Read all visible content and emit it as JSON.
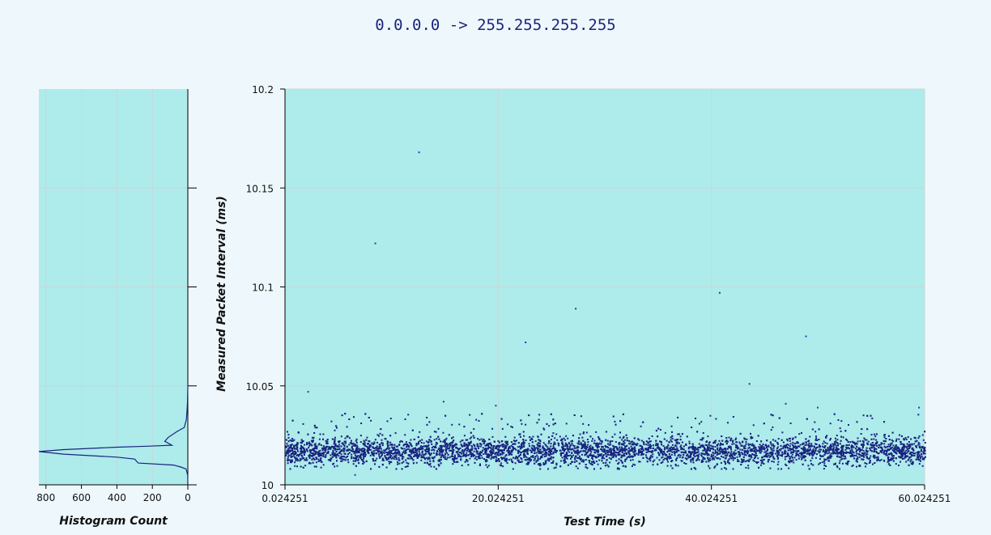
{
  "title": "0.0.0.0 -> 255.255.255.255",
  "colors": {
    "background": "#eef8fc",
    "plot_background": "#aeebeb",
    "grid": "#c8d8d8",
    "points": "#1a237e",
    "title": "#1a237e"
  },
  "chart_data": [
    {
      "id": "histogram",
      "type": "line",
      "orientation": "horizontal-histogram",
      "xlabel": "Histogram Count",
      "ylabel": "",
      "x_reversed": true,
      "xlim": [
        0,
        840
      ],
      "ylim": [
        10,
        10.2
      ],
      "xticks": [
        800,
        600,
        400,
        200,
        0
      ],
      "grid": true,
      "series": [
        {
          "points": [
            [
              0,
              10.0
            ],
            [
              1,
              10.005
            ],
            [
              10,
              10.008
            ],
            [
              40,
              10.009
            ],
            [
              80,
              10.01
            ],
            [
              280,
              10.011
            ],
            [
              300,
              10.013
            ],
            [
              400,
              10.014
            ],
            [
              700,
              10.0155
            ],
            [
              840,
              10.0168
            ],
            [
              700,
              10.0178
            ],
            [
              400,
              10.019
            ],
            [
              230,
              10.0195
            ],
            [
              90,
              10.02
            ],
            [
              130,
              10.022
            ],
            [
              110,
              10.024
            ],
            [
              60,
              10.027
            ],
            [
              20,
              10.029
            ],
            [
              8,
              10.033
            ],
            [
              4,
              10.038
            ],
            [
              2,
              10.042
            ],
            [
              0,
              10.05
            ]
          ]
        }
      ]
    },
    {
      "id": "scatter",
      "type": "scatter",
      "xlabel": "Test Time (s)",
      "ylabel": "Measured Packet Interval (ms)",
      "xlim": [
        0.024251,
        60.024251
      ],
      "ylim": [
        10,
        10.2
      ],
      "xticks": [
        "0.024251",
        "20.024251",
        "40.024251",
        "60.024251"
      ],
      "yticks": [
        "10",
        "10.05",
        "10.1",
        "10.15",
        "10.2"
      ],
      "grid": true,
      "outliers": [
        [
          2.2,
          10.047
        ],
        [
          8.5,
          10.122
        ],
        [
          12.6,
          10.168
        ],
        [
          14.9,
          10.042
        ],
        [
          19.8,
          10.04
        ],
        [
          22.6,
          10.072
        ],
        [
          27.3,
          10.089
        ],
        [
          40.8,
          10.097
        ],
        [
          43.6,
          10.051
        ],
        [
          47.0,
          10.041
        ],
        [
          48.9,
          10.075
        ],
        [
          50.0,
          10.039
        ],
        [
          59.5,
          10.039
        ],
        [
          6.6,
          10.005
        ]
      ],
      "bulk": {
        "count": 6000,
        "center": 10.0168,
        "spread": 0.0035,
        "upper_tail_max": 10.036,
        "lower_tail_min": 10.008
      }
    }
  ]
}
